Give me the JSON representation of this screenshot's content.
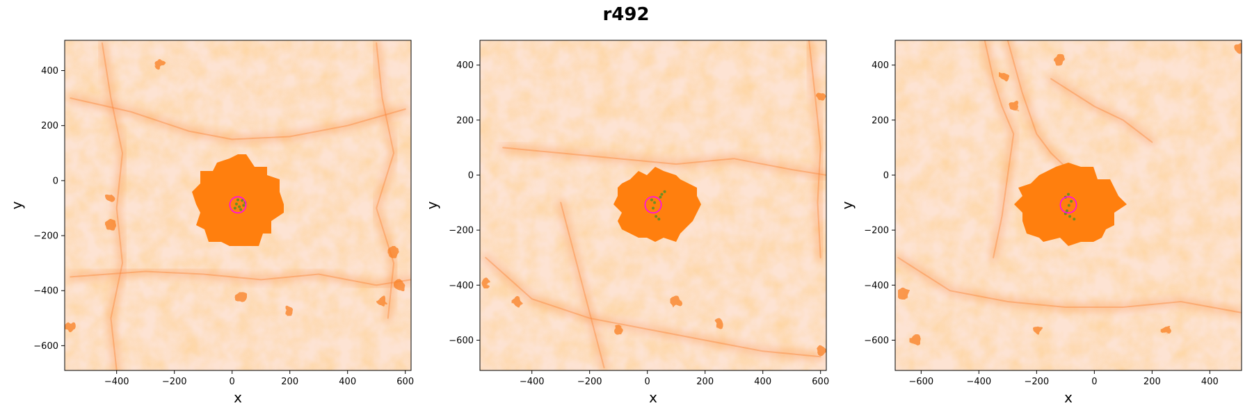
{
  "figure": {
    "title": "r492"
  },
  "chart_data": [
    {
      "type": "scatter",
      "xlabel": "x",
      "ylabel": "y",
      "xlim": [
        -580,
        620
      ],
      "ylim": [
        -690,
        510
      ],
      "xticks": [
        -400,
        -200,
        0,
        200,
        400,
        600
      ],
      "yticks": [
        400,
        200,
        0,
        -200,
        -400,
        -600
      ],
      "blob_center": [
        20,
        -80
      ],
      "blob_radius": [
        150,
        165
      ],
      "circle": {
        "cx": 20,
        "cy": -88,
        "r": 28
      },
      "green_points": [
        [
          15,
          -85
        ],
        [
          25,
          -95
        ],
        [
          35,
          -72
        ],
        [
          40,
          -90
        ],
        [
          10,
          -100
        ],
        [
          30,
          -105
        ],
        [
          45,
          -80
        ],
        [
          20,
          -70
        ]
      ],
      "filaments": [
        [
          [
            -560,
            300
          ],
          [
            -350,
            250
          ],
          [
            -150,
            180
          ],
          [
            0,
            150
          ],
          [
            200,
            160
          ],
          [
            400,
            200
          ],
          [
            600,
            260
          ]
        ],
        [
          [
            -560,
            -350
          ],
          [
            -300,
            -330
          ],
          [
            -100,
            -340
          ],
          [
            100,
            -360
          ],
          [
            300,
            -340
          ],
          [
            500,
            -380
          ],
          [
            620,
            -360
          ]
        ],
        [
          [
            -450,
            500
          ],
          [
            -420,
            300
          ],
          [
            -380,
            100
          ],
          [
            -400,
            -100
          ],
          [
            -380,
            -300
          ],
          [
            -420,
            -500
          ],
          [
            -400,
            -690
          ]
        ],
        [
          [
            500,
            500
          ],
          [
            520,
            300
          ],
          [
            560,
            100
          ],
          [
            500,
            -100
          ],
          [
            560,
            -300
          ],
          [
            540,
            -500
          ]
        ]
      ],
      "clumps": [
        [
          -420,
          -60
        ],
        [
          -420,
          -160
        ],
        [
          560,
          -260
        ],
        [
          580,
          -380
        ],
        [
          520,
          -440
        ],
        [
          -250,
          420
        ],
        [
          -560,
          -530
        ],
        [
          200,
          -470
        ],
        [
          30,
          -420
        ]
      ]
    },
    {
      "type": "scatter",
      "xlabel": "x",
      "ylabel": "y",
      "xlim": [
        -580,
        620
      ],
      "ylim": [
        -710,
        490
      ],
      "xticks": [
        -400,
        -200,
        0,
        200,
        400,
        600
      ],
      "yticks": [
        400,
        200,
        0,
        -200,
        -400,
        -600
      ],
      "blob_center": [
        30,
        -110
      ],
      "blob_radius": [
        145,
        130
      ],
      "circle": {
        "cx": 20,
        "cy": -108,
        "r": 28
      },
      "green_points": [
        [
          15,
          -90
        ],
        [
          25,
          -100
        ],
        [
          45,
          -80
        ],
        [
          60,
          -60
        ],
        [
          30,
          -150
        ],
        [
          40,
          -160
        ],
        [
          20,
          -120
        ],
        [
          50,
          -70
        ]
      ],
      "filaments": [
        [
          [
            -560,
            -300
          ],
          [
            -400,
            -450
          ],
          [
            -200,
            -520
          ],
          [
            0,
            -560
          ],
          [
            200,
            -600
          ],
          [
            400,
            -640
          ],
          [
            600,
            -660
          ]
        ],
        [
          [
            -500,
            100
          ],
          [
            -300,
            80
          ],
          [
            -100,
            60
          ],
          [
            100,
            40
          ],
          [
            300,
            60
          ],
          [
            500,
            20
          ],
          [
            620,
            0
          ]
        ],
        [
          [
            560,
            490
          ],
          [
            580,
            300
          ],
          [
            600,
            100
          ],
          [
            590,
            -100
          ],
          [
            600,
            -300
          ]
        ],
        [
          [
            -300,
            -100
          ],
          [
            -250,
            -300
          ],
          [
            -200,
            -500
          ],
          [
            -150,
            -700
          ]
        ]
      ],
      "clumps": [
        [
          -560,
          -390
        ],
        [
          600,
          290
        ],
        [
          600,
          -640
        ],
        [
          -100,
          -560
        ],
        [
          250,
          -540
        ],
        [
          -450,
          -460
        ],
        [
          100,
          -460
        ]
      ]
    },
    {
      "type": "scatter",
      "xlabel": "x",
      "ylabel": "y",
      "xlim": [
        -690,
        510
      ],
      "ylim": [
        -710,
        490
      ],
      "xticks": [
        -600,
        -400,
        -200,
        0,
        200,
        400
      ],
      "yticks": [
        400,
        200,
        0,
        -200,
        -400,
        -600
      ],
      "blob_center": [
        -90,
        -110
      ],
      "blob_radius": [
        175,
        145
      ],
      "circle": {
        "cx": -90,
        "cy": -108,
        "r": 28
      },
      "green_points": [
        [
          -90,
          -70
        ],
        [
          -100,
          -80
        ],
        [
          -80,
          -95
        ],
        [
          -95,
          -130
        ],
        [
          -85,
          -150
        ],
        [
          -70,
          -160
        ],
        [
          -100,
          -140
        ],
        [
          -88,
          -110
        ]
      ],
      "filaments": [
        [
          [
            -380,
            490
          ],
          [
            -350,
            350
          ],
          [
            -320,
            250
          ],
          [
            -280,
            150
          ],
          [
            -300,
            0
          ],
          [
            -320,
            -150
          ],
          [
            -350,
            -300
          ]
        ],
        [
          [
            -300,
            490
          ],
          [
            -250,
            300
          ],
          [
            -200,
            150
          ],
          [
            -150,
            80
          ],
          [
            -100,
            30
          ]
        ],
        [
          [
            -680,
            -300
          ],
          [
            -500,
            -420
          ],
          [
            -300,
            -460
          ],
          [
            -100,
            -480
          ],
          [
            100,
            -480
          ],
          [
            300,
            -460
          ],
          [
            510,
            -500
          ]
        ],
        [
          [
            -150,
            350
          ],
          [
            0,
            250
          ],
          [
            100,
            200
          ],
          [
            200,
            120
          ]
        ]
      ],
      "clumps": [
        [
          -660,
          -430
        ],
        [
          -620,
          -600
        ],
        [
          -310,
          360
        ],
        [
          -280,
          250
        ],
        [
          -200,
          -560
        ],
        [
          250,
          -560
        ],
        [
          500,
          460
        ],
        [
          -120,
          420
        ]
      ]
    }
  ]
}
